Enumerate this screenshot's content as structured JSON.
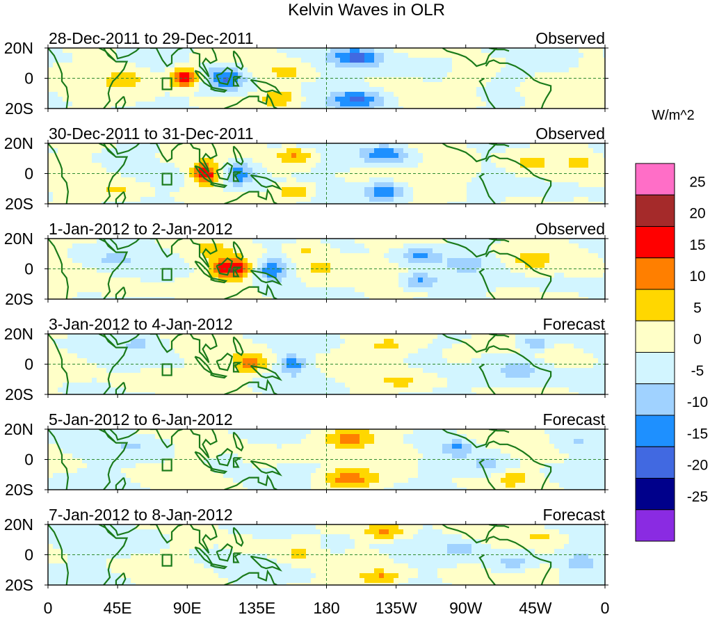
{
  "chart_data": {
    "type": "heatmap",
    "title": "Kelvin Waves in OLR",
    "colorbar": {
      "unit_label": "W/m^2",
      "ticks": [
        "25",
        "20",
        "15",
        "10",
        "5",
        "0",
        "-5",
        "-10",
        "-15",
        "-20",
        "-25"
      ],
      "colors": [
        "#ff6ec7",
        "#a52a2a",
        "#ff0000",
        "#ff7f00",
        "#ffd700",
        "#ffffc8",
        "#d2f5ff",
        "#a0d2ff",
        "#1e90ff",
        "#4169e1",
        "#00008b",
        "#8a2be2"
      ]
    },
    "x_ticks": [
      "0",
      "45E",
      "90E",
      "135E",
      "180",
      "135W",
      "90W",
      "45W",
      "0"
    ],
    "x_values": [
      0,
      45,
      90,
      135,
      180,
      225,
      270,
      315,
      360
    ],
    "y_ticks": [
      "20N",
      "0",
      "20S"
    ],
    "y_values": [
      20,
      0,
      -20
    ],
    "xlim": [
      0,
      360
    ],
    "ylim": [
      -20,
      20
    ],
    "panels": [
      {
        "period": "28-Dec-2011 to 29-Dec-2011",
        "status": "Observed",
        "anomalies": [
          {
            "lon": 88,
            "lat": 0,
            "wlon": 10,
            "wlat": 6,
            "v": 22
          },
          {
            "lon": 52,
            "lat": 0,
            "wlon": 16,
            "wlat": 8,
            "v": 7
          },
          {
            "lon": 60,
            "lat": 17,
            "wlon": 14,
            "wlat": 6,
            "v": -4
          },
          {
            "lon": 115,
            "lat": 0,
            "wlon": 13,
            "wlat": 8,
            "v": -15
          },
          {
            "lon": 150,
            "lat": -13,
            "wlon": 12,
            "wlat": 5,
            "v": 10
          },
          {
            "lon": 155,
            "lat": 5,
            "wlon": 10,
            "wlat": 5,
            "v": 6
          },
          {
            "lon": 200,
            "lat": 14,
            "wlon": 16,
            "wlat": 6,
            "v": -15
          },
          {
            "lon": 200,
            "lat": -14,
            "wlon": 16,
            "wlat": 6,
            "v": -15
          },
          {
            "lon": 245,
            "lat": 8,
            "wlon": 20,
            "wlat": 8,
            "v": -4
          },
          {
            "lon": 275,
            "lat": 3,
            "wlon": 15,
            "wlat": 8,
            "v": 6
          },
          {
            "lon": 315,
            "lat": -7,
            "wlon": 14,
            "wlat": 6,
            "v": 5
          },
          {
            "lon": 330,
            "lat": 10,
            "wlon": 12,
            "wlat": 6,
            "v": -6
          },
          {
            "lon": 345,
            "lat": -12,
            "wlon": 12,
            "wlat": 5,
            "v": 3
          }
        ]
      },
      {
        "period": "30-Dec-2011 to 31-Dec-2011",
        "status": "Observed",
        "anomalies": [
          {
            "lon": 102,
            "lat": 0,
            "wlon": 10,
            "wlat": 7,
            "v": 20
          },
          {
            "lon": 123,
            "lat": 0,
            "wlon": 12,
            "wlat": 8,
            "v": -14
          },
          {
            "lon": 82,
            "lat": 12,
            "wlon": 15,
            "wlat": 6,
            "v": 5
          },
          {
            "lon": 45,
            "lat": -12,
            "wlon": 16,
            "wlat": 6,
            "v": 5
          },
          {
            "lon": 60,
            "lat": 14,
            "wlon": 12,
            "wlat": 5,
            "v": -4
          },
          {
            "lon": 160,
            "lat": 12,
            "wlon": 12,
            "wlat": 5,
            "v": 11
          },
          {
            "lon": 160,
            "lat": -12,
            "wlon": 12,
            "wlat": 5,
            "v": 11
          },
          {
            "lon": 218,
            "lat": 13,
            "wlon": 14,
            "wlat": 6,
            "v": -15
          },
          {
            "lon": 218,
            "lat": -12,
            "wlon": 14,
            "wlat": 6,
            "v": -15
          },
          {
            "lon": 265,
            "lat": 2,
            "wlon": 16,
            "wlat": 8,
            "v": 5
          },
          {
            "lon": 310,
            "lat": 6,
            "wlon": 14,
            "wlat": 6,
            "v": 6
          },
          {
            "lon": 330,
            "lat": -12,
            "wlon": 12,
            "wlat": 5,
            "v": -5
          },
          {
            "lon": 345,
            "lat": 8,
            "wlon": 12,
            "wlat": 5,
            "v": 4
          }
        ]
      },
      {
        "period": "1-Jan-2012 to 2-Jan-2012",
        "status": "Observed",
        "anomalies": [
          {
            "lon": 118,
            "lat": 0,
            "wlon": 13,
            "wlat": 7,
            "v": 20
          },
          {
            "lon": 144,
            "lat": 0,
            "wlon": 10,
            "wlat": 7,
            "v": -14
          },
          {
            "lon": 175,
            "lat": 0,
            "wlon": 14,
            "wlat": 14,
            "v": 6
          },
          {
            "lon": 165,
            "lat": 14,
            "wlon": 12,
            "wlat": 5,
            "v": 6
          },
          {
            "lon": 105,
            "lat": 13,
            "wlon": 12,
            "wlat": 5,
            "v": 5
          },
          {
            "lon": 240,
            "lat": 9,
            "wlon": 12,
            "wlat": 5,
            "v": -12
          },
          {
            "lon": 240,
            "lat": -8,
            "wlon": 12,
            "wlat": 5,
            "v": -12
          },
          {
            "lon": 270,
            "lat": 4,
            "wlon": 14,
            "wlat": 8,
            "v": -5
          },
          {
            "lon": 312,
            "lat": 6,
            "wlon": 14,
            "wlat": 6,
            "v": 6
          },
          {
            "lon": 330,
            "lat": -10,
            "wlon": 12,
            "wlat": 5,
            "v": -4
          },
          {
            "lon": 40,
            "lat": 6,
            "wlon": 20,
            "wlat": 6,
            "v": -4
          },
          {
            "lon": 50,
            "lat": -14,
            "wlon": 16,
            "wlat": 5,
            "v": 4
          }
        ]
      },
      {
        "period": "3-Jan-2012 to 4-Jan-2012",
        "status": "Forecast",
        "anomalies": [
          {
            "lon": 130,
            "lat": 0,
            "wlon": 12,
            "wlat": 7,
            "v": 13
          },
          {
            "lon": 158,
            "lat": 0,
            "wlon": 8,
            "wlat": 6,
            "v": -13
          },
          {
            "lon": 220,
            "lat": 12,
            "wlon": 18,
            "wlat": 6,
            "v": 6
          },
          {
            "lon": 230,
            "lat": -12,
            "wlon": 18,
            "wlat": 5,
            "v": 5
          },
          {
            "lon": 305,
            "lat": -4,
            "wlon": 18,
            "wlat": 10,
            "v": -7
          },
          {
            "lon": 315,
            "lat": 14,
            "wlon": 10,
            "wlat": 5,
            "v": -10
          },
          {
            "lon": 265,
            "lat": 5,
            "wlon": 14,
            "wlat": 6,
            "v": 4
          },
          {
            "lon": 60,
            "lat": 14,
            "wlon": 16,
            "wlat": 5,
            "v": -5
          },
          {
            "lon": 60,
            "lat": -12,
            "wlon": 18,
            "wlat": 6,
            "v": 4
          }
        ]
      },
      {
        "period": "5-Jan-2012 to 6-Jan-2012",
        "status": "Forecast",
        "anomalies": [
          {
            "lon": 195,
            "lat": 14,
            "wlon": 18,
            "wlat": 6,
            "v": 12
          },
          {
            "lon": 195,
            "lat": -13,
            "wlon": 18,
            "wlat": 6,
            "v": 12
          },
          {
            "lon": 140,
            "lat": 0,
            "wlon": 12,
            "wlat": 6,
            "v": 5
          },
          {
            "lon": 165,
            "lat": 2,
            "wlon": 10,
            "wlat": 5,
            "v": 5
          },
          {
            "lon": 170,
            "lat": -3,
            "wlon": 10,
            "wlat": 5,
            "v": -4
          },
          {
            "lon": 265,
            "lat": 8,
            "wlon": 10,
            "wlat": 5,
            "v": -10
          },
          {
            "lon": 285,
            "lat": -3,
            "wlon": 14,
            "wlat": 8,
            "v": -6
          },
          {
            "lon": 300,
            "lat": -12,
            "wlon": 10,
            "wlat": 5,
            "v": 8
          },
          {
            "lon": 230,
            "lat": 4,
            "wlon": 16,
            "wlat": 7,
            "v": 4
          },
          {
            "lon": 60,
            "lat": 10,
            "wlon": 20,
            "wlat": 6,
            "v": -4
          },
          {
            "lon": 340,
            "lat": 10,
            "wlon": 12,
            "wlat": 5,
            "v": -5
          }
        ]
      },
      {
        "period": "7-Jan-2012 to 8-Jan-2012",
        "status": "Forecast",
        "anomalies": [
          {
            "lon": 218,
            "lat": 15,
            "wlon": 14,
            "wlat": 5,
            "v": 12
          },
          {
            "lon": 215,
            "lat": -15,
            "wlon": 14,
            "wlat": 5,
            "v": 11
          },
          {
            "lon": 160,
            "lat": 0,
            "wlon": 14,
            "wlat": 6,
            "v": 5
          },
          {
            "lon": 185,
            "lat": 5,
            "wlon": 12,
            "wlat": 6,
            "v": -4
          },
          {
            "lon": 268,
            "lat": 4,
            "wlon": 14,
            "wlat": 6,
            "v": -6
          },
          {
            "lon": 300,
            "lat": -5,
            "wlon": 14,
            "wlat": 7,
            "v": -7
          },
          {
            "lon": 320,
            "lat": 12,
            "wlon": 12,
            "wlat": 5,
            "v": 5
          },
          {
            "lon": 320,
            "lat": -12,
            "wlon": 12,
            "wlat": 5,
            "v": 6
          },
          {
            "lon": 345,
            "lat": -4,
            "wlon": 10,
            "wlat": 6,
            "v": -8
          },
          {
            "lon": 60,
            "lat": 12,
            "wlon": 20,
            "wlat": 6,
            "v": -4
          },
          {
            "lon": 130,
            "lat": 4,
            "wlon": 12,
            "wlat": 6,
            "v": 3
          }
        ]
      }
    ]
  },
  "colors": {
    "coastline": "#1a7a1a",
    "zero_line": "#2e8b2e",
    "frame": "#000000"
  }
}
